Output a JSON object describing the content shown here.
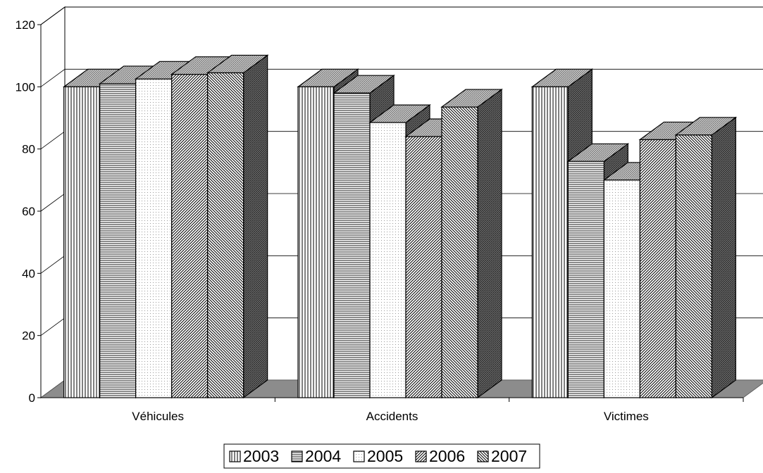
{
  "chart_data": {
    "type": "bar",
    "categories": [
      "Véhicules",
      "Accidents",
      "Victimes"
    ],
    "series": [
      {
        "name": "2003",
        "values": [
          100,
          100,
          100
        ],
        "pattern": "vlines"
      },
      {
        "name": "2004",
        "values": [
          101,
          98,
          76
        ],
        "pattern": "hlines"
      },
      {
        "name": "2005",
        "values": [
          102.5,
          88.5,
          70
        ],
        "pattern": "dots"
      },
      {
        "name": "2006",
        "values": [
          104,
          84,
          83
        ],
        "pattern": "diag"
      },
      {
        "name": "2007",
        "values": [
          104.5,
          93.5,
          84.5
        ],
        "pattern": "diag2"
      }
    ],
    "ylim": [
      0,
      120
    ],
    "yticks": [
      "0",
      "20",
      "40",
      "60",
      "80",
      "100",
      "120"
    ],
    "grid": true,
    "three_d": true,
    "legend_position": "bottom",
    "colors": {
      "face": "#ffffff",
      "top": "#c8c8c8",
      "side": "#7a7a7a",
      "floor": "#8c8c8c",
      "stroke": "#000000",
      "grid": "#000000"
    }
  }
}
